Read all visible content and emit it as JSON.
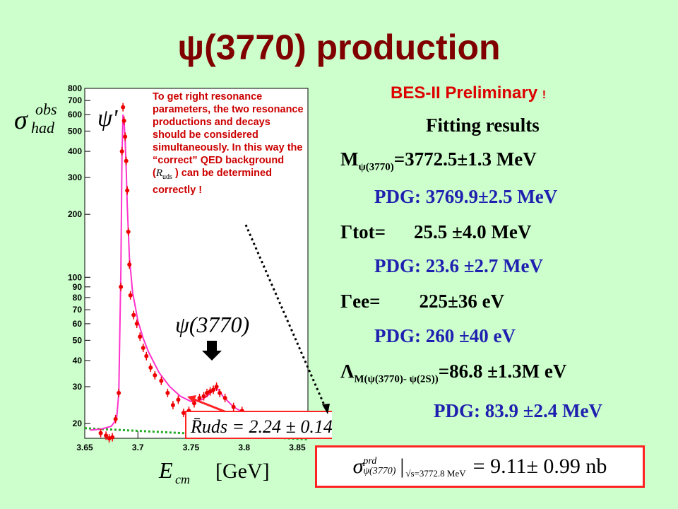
{
  "slide": {
    "title_symbol": "ψ",
    "title_text": "(3770) production",
    "subtitle": "BES-II Preliminary",
    "subtitle_mark": "!"
  },
  "note": {
    "text_1": "To get right resonance parameters, the two resonance productions and decays should be considered simultaneously. In this way the “correct” QED background (",
    "text_sym": "R",
    "text_sym_sub": "uds",
    "text_2": " ) can be determined correctly !"
  },
  "results": {
    "heading": "Fitting results",
    "mass_label": "M",
    "mass_sub": "ψ(3770)",
    "mass_value": "=3772.5±1.3 MeV",
    "mass_pdg": "PDG: 3769.9±2.5 MeV",
    "gtot_label": "Γtot=",
    "gtot_value": "25.5 ±4.0 MeV",
    "gtot_pdg": "PDG: 23.6 ±2.7 MeV",
    "gee_label": "Γee=",
    "gee_value": "225±36 eV",
    "gee_pdg": "PDG: 260 ±40 eV",
    "lambda_label": "Λ",
    "lambda_sub": "M(ψ(3770)- ψ(2S))",
    "lambda_value": "=86.8 ±1.3M eV",
    "lambda_pdg": "PDG: 83.9 ±2.4 MeV"
  },
  "formula": {
    "sigma": "σ",
    "sup": "prd",
    "sub": "ψ(3770)",
    "condition": "√s=3772.8 MeV",
    "value": "= 9.11± 0.99  nb"
  },
  "colors": {
    "background": "#ccffcc",
    "title": "#800000",
    "fit_line": "#ff33cc",
    "data_points": "#ee0000",
    "background_line": "#22aa22"
  },
  "chart_data": {
    "type": "scatter",
    "xlabel": "E",
    "xlabel_sub": "cm",
    "xunit": "[GeV]",
    "ylabel": "σ",
    "ylabel_sup": "obs",
    "ylabel_sub": "had",
    "yscale": "log",
    "xlim": [
      3.65,
      3.86
    ],
    "ylim": [
      17,
      800
    ],
    "x_ticks": [
      3.65,
      3.7,
      3.75,
      3.8,
      3.85
    ],
    "x_tick_labels": [
      "3.65",
      "3.7",
      "3.75",
      "3.8",
      "3.85"
    ],
    "y_ticks": [
      20,
      30,
      40,
      50,
      60,
      70,
      80,
      90,
      100,
      200,
      300,
      400,
      500,
      600,
      700,
      800
    ],
    "y_tick_labels": [
      "20",
      "30",
      "40",
      "50",
      "60",
      "70",
      "80",
      "90",
      "100",
      "200",
      "300",
      "400",
      "500",
      "600",
      "700",
      "800"
    ],
    "peak_labels": [
      {
        "text": "ψ'",
        "x": 3.686
      },
      {
        "text": "ψ(3770)",
        "x": 3.773
      }
    ],
    "annotation": "R̄uds = 2.24 ± 0.14",
    "series": [
      {
        "kind": "data",
        "points": [
          [
            3.665,
            18
          ],
          [
            3.67,
            17.5
          ],
          [
            3.673,
            17
          ],
          [
            3.676,
            17.2
          ],
          [
            3.679,
            21
          ],
          [
            3.682,
            28
          ],
          [
            3.684,
            90
          ],
          [
            3.685,
            400
          ],
          [
            3.686,
            650
          ],
          [
            3.687,
            560
          ],
          [
            3.688,
            470
          ],
          [
            3.689,
            360
          ],
          [
            3.69,
            260
          ],
          [
            3.691,
            165
          ],
          [
            3.692,
            115
          ],
          [
            3.693,
            82
          ],
          [
            3.696,
            66
          ],
          [
            3.699,
            60
          ],
          [
            3.702,
            52
          ],
          [
            3.705,
            46
          ],
          [
            3.708,
            42
          ],
          [
            3.712,
            37
          ],
          [
            3.716,
            34
          ],
          [
            3.722,
            32
          ],
          [
            3.728,
            28
          ],
          [
            3.733,
            24.5
          ],
          [
            3.738,
            26
          ],
          [
            3.743,
            22.5
          ],
          [
            3.748,
            23
          ],
          [
            3.753,
            25
          ],
          [
            3.758,
            26.5
          ],
          [
            3.762,
            27
          ],
          [
            3.765,
            28
          ],
          [
            3.768,
            28.5
          ],
          [
            3.771,
            29
          ],
          [
            3.774,
            30
          ],
          [
            3.777,
            28
          ],
          [
            3.782,
            26.5
          ],
          [
            3.79,
            24
          ],
          [
            3.798,
            23
          ],
          [
            3.805,
            21.5
          ],
          [
            3.813,
            21
          ],
          [
            3.82,
            20.5
          ],
          [
            3.832,
            20
          ],
          [
            3.845,
            19.5
          ],
          [
            3.855,
            19.5
          ]
        ]
      },
      {
        "kind": "fit",
        "points": [
          [
            3.655,
            18.6
          ],
          [
            3.665,
            18.8
          ],
          [
            3.675,
            19.4
          ],
          [
            3.68,
            21
          ],
          [
            3.682,
            28
          ],
          [
            3.684,
            110
          ],
          [
            3.685,
            380
          ],
          [
            3.686,
            600
          ],
          [
            3.687,
            560
          ],
          [
            3.688,
            450
          ],
          [
            3.689,
            330
          ],
          [
            3.69,
            220
          ],
          [
            3.692,
            125
          ],
          [
            3.695,
            85
          ],
          [
            3.7,
            62
          ],
          [
            3.705,
            51
          ],
          [
            3.71,
            44
          ],
          [
            3.72,
            35
          ],
          [
            3.73,
            30
          ],
          [
            3.74,
            27
          ],
          [
            3.75,
            25.5
          ],
          [
            3.76,
            26
          ],
          [
            3.765,
            27
          ],
          [
            3.77,
            28.5
          ],
          [
            3.773,
            29.5
          ],
          [
            3.776,
            29
          ],
          [
            3.78,
            27
          ],
          [
            3.79,
            24
          ],
          [
            3.8,
            22.5
          ],
          [
            3.81,
            21.5
          ],
          [
            3.82,
            21
          ],
          [
            3.84,
            20.2
          ],
          [
            3.86,
            19.7
          ]
        ]
      },
      {
        "kind": "background",
        "points": [
          [
            3.65,
            19
          ],
          [
            3.86,
            16.8
          ]
        ]
      }
    ]
  }
}
